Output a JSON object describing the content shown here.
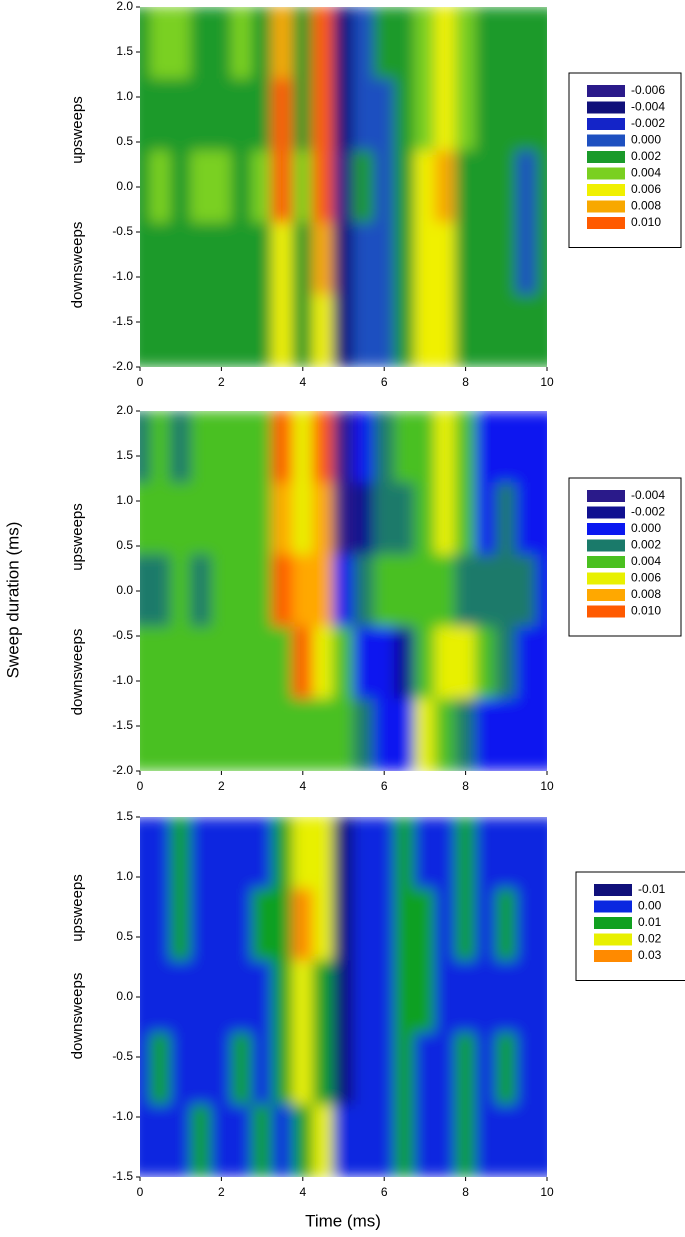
{
  "ylabel": "Sweep duration (ms)",
  "xlabel": "Time (ms)",
  "chart_data": [
    {
      "type": "contour",
      "annotations": [
        "upsweeps",
        "downsweeps"
      ],
      "xlim": [
        0,
        10
      ],
      "ylim": [
        -2,
        2
      ],
      "xticks": [
        0,
        2,
        4,
        6,
        8,
        10
      ],
      "yticks": [
        {
          "value": 2,
          "label": "2.0"
        },
        {
          "value": 1.5,
          "label": "1.5"
        },
        {
          "value": 1,
          "label": "1.0"
        },
        {
          "value": 0.5,
          "label": "0.5"
        },
        {
          "value": 0,
          "label": "0.0"
        },
        {
          "value": -0.5,
          "label": "-0.5"
        },
        {
          "value": -1,
          "label": "-1.0"
        },
        {
          "value": -1.5,
          "label": "-1.5"
        },
        {
          "value": -2,
          "label": "-2.0"
        }
      ],
      "levels": [
        -0.006,
        -0.004,
        -0.002,
        {
          "value": 0,
          "label": "0.000"
        },
        0.002,
        0.004,
        0.006,
        0.008,
        {
          "value": 0.01,
          "label": "0.010"
        }
      ],
      "colors": [
        "#2a1a8a",
        "#10107a",
        "#1424c8",
        "#1e50c0",
        "#1a9a2a",
        "#7ad020",
        "#f0f000",
        "#f8a800",
        "#ff5a00"
      ],
      "x": [
        0,
        0.5,
        1,
        1.5,
        2,
        2.5,
        3,
        3.5,
        4,
        4.5,
        5,
        5.5,
        6,
        6.5,
        7,
        7.5,
        8,
        8.5,
        9,
        9.5,
        10
      ],
      "y": [
        1.6,
        0.8,
        0,
        -0.8,
        -1.6
      ],
      "z": [
        [
          0.003,
          0.004,
          0.004,
          0.003,
          0.003,
          0.004,
          0.003,
          0.009,
          0.002,
          0.011,
          -0.003,
          0.001,
          0.002,
          0.003,
          0.005,
          0.007,
          0.004,
          0.002,
          0.003,
          0.002,
          0.002
        ],
        [
          0.003,
          0.003,
          0.003,
          0.003,
          0.003,
          0.003,
          0.003,
          0.011,
          0.002,
          0.011,
          -0.003,
          0.0,
          0.001,
          0.002,
          0.004,
          0.007,
          0.004,
          0.002,
          0.002,
          0.002,
          0.002
        ],
        [
          0.003,
          0.004,
          0.003,
          0.004,
          0.005,
          0.003,
          0.004,
          0.01,
          0.004,
          0.01,
          -0.005,
          0.002,
          0.001,
          0.003,
          0.006,
          0.008,
          0.003,
          0.002,
          0.002,
          0.001,
          0.002
        ],
        [
          0.003,
          0.003,
          0.003,
          0.003,
          0.003,
          0.003,
          0.003,
          0.007,
          0.002,
          0.009,
          -0.004,
          0.001,
          0.001,
          0.002,
          0.006,
          0.007,
          0.003,
          0.002,
          0.002,
          0.001,
          0.002
        ],
        [
          0.002,
          0.003,
          0.003,
          0.003,
          0.003,
          0.003,
          0.003,
          0.007,
          0.002,
          0.007,
          -0.003,
          0.001,
          0.001,
          0.002,
          0.006,
          0.006,
          0.003,
          0.002,
          0.002,
          0.002,
          0.002
        ]
      ]
    },
    {
      "type": "contour",
      "annotations": [
        "upsweeps",
        "downsweeps"
      ],
      "xlim": [
        0,
        10
      ],
      "ylim": [
        -2,
        2
      ],
      "xticks": [
        0,
        2,
        4,
        6,
        8,
        10
      ],
      "yticks": [
        {
          "value": 2,
          "label": "2.0"
        },
        {
          "value": 1.5,
          "label": "1.5"
        },
        {
          "value": 1,
          "label": "1.0"
        },
        {
          "value": 0.5,
          "label": "0.5"
        },
        {
          "value": 0,
          "label": "0.0"
        },
        {
          "value": -0.5,
          "label": "-0.5"
        },
        {
          "value": -1,
          "label": "-1.0"
        },
        {
          "value": -1.5,
          "label": "-1.5"
        },
        {
          "value": -2,
          "label": "-2.0"
        }
      ],
      "levels": [
        -0.004,
        -0.002,
        {
          "value": 0,
          "label": "0.000"
        },
        0.002,
        0.004,
        0.006,
        0.008,
        {
          "value": 0.01,
          "label": "0.010"
        }
      ],
      "colors": [
        "#2a1a8a",
        "#101090",
        "#0a18f0",
        "#1a7a6a",
        "#4ac020",
        "#e8f000",
        "#ffa800",
        "#ff5a00"
      ],
      "x": [
        0,
        0.5,
        1,
        1.5,
        2,
        2.5,
        3,
        3.5,
        4,
        4.5,
        5,
        5.5,
        6,
        6.5,
        7,
        7.5,
        8,
        8.5,
        9,
        9.5,
        10
      ],
      "y": [
        1.6,
        0.8,
        0,
        -0.8,
        -1.6
      ],
      "z": [
        [
          0.002,
          0.004,
          0.003,
          0.004,
          0.004,
          0.004,
          0.005,
          0.01,
          0.006,
          0.01,
          -0.003,
          0.0,
          0.003,
          0.004,
          0.005,
          0.007,
          0.005,
          0.001,
          0.001,
          0.001,
          0.001
        ],
        [
          0.004,
          0.004,
          0.004,
          0.005,
          0.004,
          0.004,
          0.005,
          0.009,
          0.007,
          0.009,
          -0.003,
          -0.002,
          0.002,
          0.003,
          0.004,
          0.006,
          0.004,
          0.001,
          0.002,
          0.001,
          0.001
        ],
        [
          0.003,
          0.003,
          0.004,
          0.003,
          0.004,
          0.004,
          0.004,
          0.01,
          0.009,
          0.009,
          0.0,
          0.003,
          0.004,
          0.004,
          0.005,
          0.004,
          0.003,
          0.002,
          0.003,
          0.002,
          0.001
        ],
        [
          0.005,
          0.004,
          0.005,
          0.005,
          0.004,
          0.005,
          0.005,
          0.004,
          0.01,
          0.007,
          0.004,
          0.0,
          0.001,
          -0.001,
          0.005,
          0.007,
          0.006,
          0.004,
          0.002,
          0.001,
          0.001
        ],
        [
          0.004,
          0.005,
          0.005,
          0.005,
          0.005,
          0.004,
          0.005,
          0.005,
          0.004,
          0.005,
          0.005,
          0.003,
          0.0,
          0.001,
          0.006,
          0.004,
          0.003,
          0.001,
          0.001,
          0.001,
          0.001
        ]
      ]
    },
    {
      "type": "contour",
      "annotations": [
        "upsweeps",
        "downsweeps"
      ],
      "xlim": [
        0,
        10
      ],
      "ylim": [
        -1.5,
        1.5
      ],
      "xticks": [
        0,
        2,
        4,
        6,
        8,
        10
      ],
      "yticks": [
        {
          "value": 1.5,
          "label": "1.5"
        },
        {
          "value": 1,
          "label": "1.0"
        },
        {
          "value": 0.5,
          "label": "0.5"
        },
        {
          "value": 0,
          "label": "0.0"
        },
        {
          "value": -0.5,
          "label": "-0.5"
        },
        {
          "value": -1,
          "label": "-1.0"
        },
        {
          "value": -1.5,
          "label": "-1.5"
        }
      ],
      "levels": [
        -0.01,
        {
          "value": 0,
          "label": "0.00"
        },
        0.01,
        0.02,
        0.03
      ],
      "colors": [
        "#10107a",
        "#0a28e0",
        "#10a020",
        "#e8f000",
        "#ff8a00"
      ],
      "x": [
        0,
        0.5,
        1,
        1.5,
        2,
        2.5,
        3,
        3.5,
        4,
        4.5,
        5,
        5.5,
        6,
        6.5,
        7,
        7.5,
        8,
        8.5,
        9,
        9.5,
        10
      ],
      "y": [
        1.2,
        0.6,
        0,
        -0.6,
        -1.2
      ],
      "z": [
        [
          0.005,
          0.005,
          0.012,
          0.005,
          0.005,
          0.008,
          0.005,
          0.012,
          0.025,
          0.024,
          -0.008,
          0.0,
          0.005,
          0.013,
          0.007,
          0.004,
          0.016,
          0.005,
          0.008,
          0.005,
          0.005
        ],
        [
          0.005,
          0.008,
          0.012,
          0.005,
          0.008,
          0.005,
          0.012,
          0.015,
          0.03,
          0.022,
          -0.008,
          0.0,
          0.004,
          0.014,
          0.01,
          0.005,
          0.012,
          0.005,
          0.012,
          0.005,
          0.005
        ],
        [
          0.005,
          0.005,
          0.005,
          0.003,
          0.005,
          0.003,
          0.005,
          0.013,
          0.025,
          0.012,
          -0.004,
          0.0,
          0.005,
          0.01,
          0.012,
          0.005,
          0.008,
          0.005,
          0.005,
          0.004,
          0.005
        ],
        [
          0.005,
          0.015,
          0.005,
          0.008,
          0.005,
          0.012,
          0.005,
          0.015,
          0.022,
          0.018,
          -0.002,
          0.005,
          0.008,
          0.013,
          0.008,
          0.005,
          0.012,
          0.006,
          0.01,
          0.005,
          0.005
        ],
        [
          0.005,
          0.008,
          0.005,
          0.01,
          0.005,
          0.008,
          0.012,
          0.005,
          0.012,
          0.025,
          0.0,
          0.005,
          0.008,
          0.012,
          0.005,
          0.008,
          0.01,
          0.004,
          0.005,
          0.003,
          0.003
        ]
      ]
    }
  ]
}
